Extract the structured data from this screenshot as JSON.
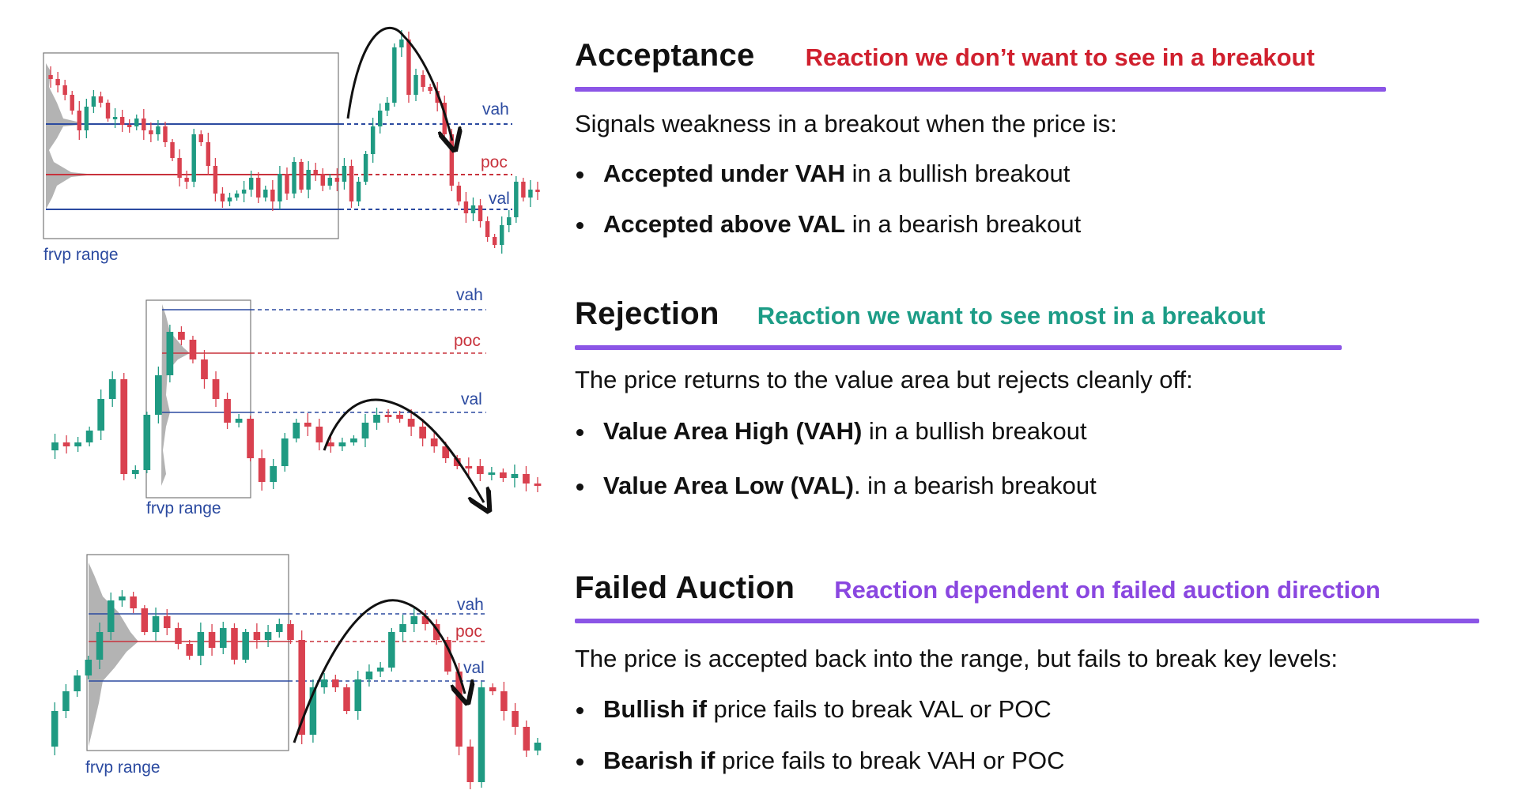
{
  "colors": {
    "red": "#d0202e",
    "teal": "#1c9c86",
    "purple": "#8a47e0",
    "rule": "#8b55e6",
    "level_blue": "#2b4aa0",
    "poc_red": "#c8323c",
    "candle_up": "#1f9a82",
    "candle_down": "#d9414f"
  },
  "charts": [
    {
      "range_label": "frvp range",
      "vah": "vah",
      "poc": "poc",
      "val": "val"
    },
    {
      "range_label": "frvp range",
      "vah": "vah",
      "poc": "poc",
      "val": "val"
    },
    {
      "range_label": "frvp range",
      "vah": "vah",
      "poc": "poc",
      "val": "val"
    }
  ],
  "sections": [
    {
      "title": "Acceptance",
      "subtitle": "Reaction we don’t want to see in a breakout",
      "subtitle_color": "red",
      "body": "Signals weakness in a breakout when the price is:",
      "bullets": [
        {
          "bold": "Accepted under VAH",
          "rest": " in a bullish breakout"
        },
        {
          "bold": "Accepted above VAL",
          "rest": " in a bearish breakout"
        }
      ]
    },
    {
      "title": "Rejection",
      "subtitle": "Reaction we want to see most in a breakout",
      "subtitle_color": "teal",
      "body": "The price returns to the value area but rejects cleanly off:",
      "bullets": [
        {
          "bold": "Value Area High (VAH)",
          "rest": " in a bullish breakout"
        },
        {
          "bold": "Value Area Low (VAL)",
          "rest": ". in a bearish breakout"
        }
      ]
    },
    {
      "title": "Failed Auction",
      "subtitle": "Reaction dependent on failed auction direction",
      "subtitle_color": "purple",
      "body": "The price is accepted back into the range, but fails to break key levels:",
      "bullets": [
        {
          "bold": "Bullish if",
          "rest": " price fails to break VAL or POC"
        },
        {
          "bold": "Bearish if",
          "rest": " price fails to break VAH or POC"
        }
      ]
    }
  ]
}
